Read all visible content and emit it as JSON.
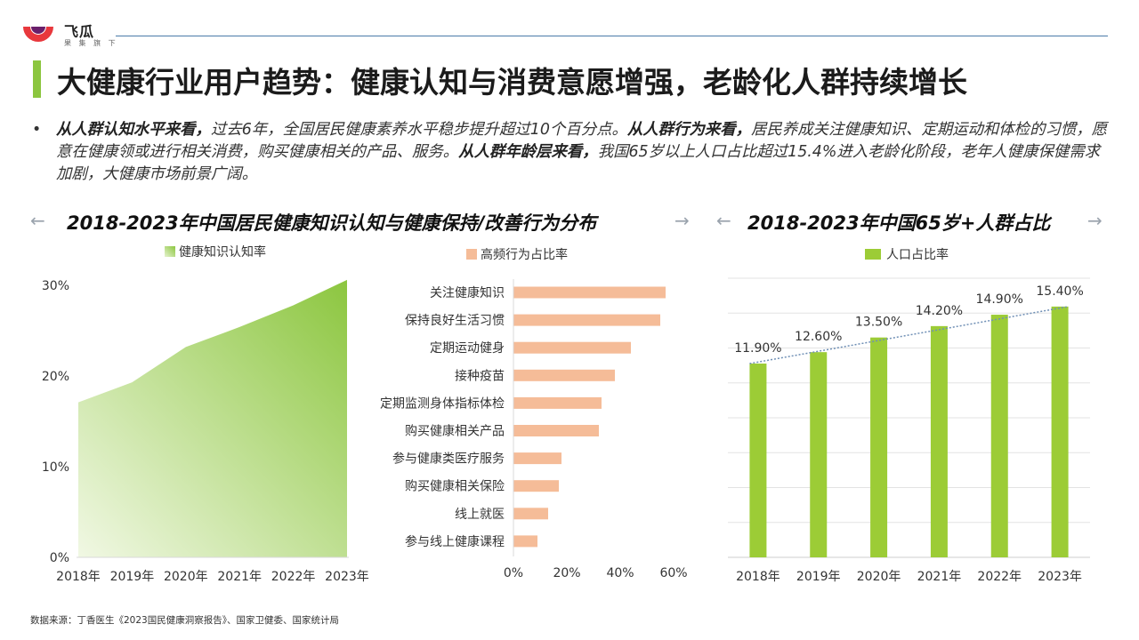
{
  "header": {
    "logo_name": "飞瓜",
    "logo_sub": "果 集 旗 下",
    "title": "大健康行业用户趋势：健康认知与消费意愿增强，老龄化人群持续增长"
  },
  "summary": {
    "s1_bold": "从人群认知水平来看，",
    "s1": "过去6年，全国居民健康素养水平稳步提升超过10个百分点。",
    "s2_bold": "从人群行为来看，",
    "s2": "居民养成关注健康知识、定期运动和体检的习惯，愿意在健康领或进行相关消费，购买健康相关的产品、服务。",
    "s3_bold": "从人群年龄层来看，",
    "s3": "我国65岁以上人口占比超过15.4%进入老龄化阶段，老年人健康保健需求加剧，大健康市场前景广阔。"
  },
  "sections": {
    "left_title": "2018-2023年中国居民健康知识认知与健康保持/改善行为分布",
    "right_title": "2018-2023年中国65岁+人群占比",
    "arrow_left": "←",
    "arrow_right": "→"
  },
  "source": "数据来源：丁香医生《2023国民健康洞察报告》、国家卫健委、国家统计局",
  "colors": {
    "green": "#8cc63f",
    "bar_green": "#9ccc36",
    "salmon": "#f5bc98",
    "trend": "#6f8fb5"
  },
  "chart_data": [
    {
      "type": "area",
      "legend": "健康知识认知率",
      "x": [
        "2018年",
        "2019年",
        "2020年",
        "2021年",
        "2022年",
        "2023年"
      ],
      "values": [
        17.1,
        19.3,
        23.2,
        25.4,
        27.8,
        30.6
      ],
      "ylim": [
        0,
        30
      ],
      "yticks": [
        "0%",
        "10%",
        "20%",
        "30%"
      ],
      "grid": false
    },
    {
      "type": "bar",
      "orientation": "horizontal",
      "legend": "高频行为占比率",
      "categories": [
        "关注健康知识",
        "保持良好生活习惯",
        "定期运动健身",
        "接种疫苗",
        "定期监测身体指标体检",
        "购买健康相关产品",
        "参与健康类医疗服务",
        "购买健康相关保险",
        "线上就医",
        "参与线上健康课程"
      ],
      "values": [
        57,
        55,
        44,
        38,
        33,
        32,
        18,
        17,
        13,
        9
      ],
      "xlim": [
        0,
        60
      ],
      "xticks": [
        "0%",
        "20%",
        "40%",
        "60%"
      ]
    },
    {
      "type": "bar",
      "legend": "人口占比率",
      "categories": [
        "2018年",
        "2019年",
        "2020年",
        "2021年",
        "2022年",
        "2023年"
      ],
      "values": [
        11.9,
        12.6,
        13.5,
        14.2,
        14.9,
        15.4
      ],
      "labels": [
        "11.90%",
        "12.60%",
        "13.50%",
        "14.20%",
        "14.90%",
        "15.40%"
      ],
      "trendline": true,
      "grid": true
    }
  ]
}
